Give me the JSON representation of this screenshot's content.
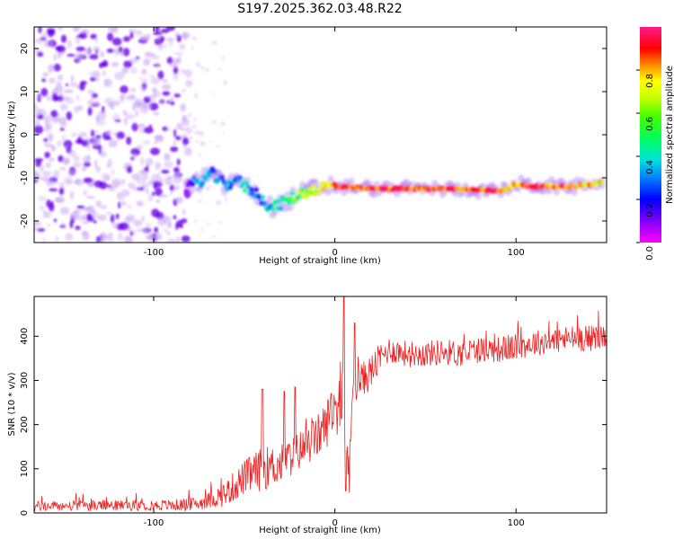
{
  "title": "S197.2025.362.03.48.R22",
  "colors": {
    "snr_line": "#ee2222",
    "spec_dark": "#6a00e8",
    "spec_light": "#c9a6f2"
  },
  "chart_data": [
    {
      "type": "heatmap",
      "xlabel": "Height of straight line (km)",
      "ylabel": "Frequency (Hz)",
      "xlim": [
        -166,
        150
      ],
      "ylim": [
        -25,
        25
      ],
      "xticks": [
        -100,
        0,
        100
      ],
      "yticks": [
        -20,
        -10,
        0,
        10,
        20
      ],
      "grid": false,
      "colorbar": {
        "label": "Normalized spectral amplitude",
        "range": [
          0,
          1
        ],
        "ticks": [
          0.0,
          0.2,
          0.4,
          0.6,
          0.8
        ],
        "tick_labels": [
          "0.0",
          "0.2",
          "0.4",
          "0.6",
          "0.8"
        ],
        "colormap": "rainbow (magenta-blue-cyan-green-yellow-red-pink)"
      },
      "noise_region_x": [
        -166,
        -80
      ],
      "ridge": {
        "description": "dominant frequency ridge vs height",
        "x": [
          -82,
          -75,
          -68,
          -60,
          -55,
          -50,
          -45,
          -40,
          -35,
          -30,
          -25,
          -20,
          -15,
          -10,
          -5,
          0,
          10,
          20,
          40,
          60,
          80,
          90,
          95,
          100,
          110,
          120,
          130,
          140,
          148
        ],
        "freq_hz": [
          -12,
          -11,
          -9,
          -12,
          -10,
          -12,
          -13,
          -15,
          -17,
          -16,
          -15,
          -14,
          -13,
          -12.5,
          -12,
          -12,
          -12.3,
          -12.5,
          -12.5,
          -12.5,
          -12.8,
          -13,
          -12.5,
          -11.5,
          -12,
          -12,
          -12,
          -11.5,
          -11
        ],
        "amplitude": [
          0.3,
          0.45,
          0.4,
          0.35,
          0.45,
          0.5,
          0.4,
          0.45,
          0.5,
          0.55,
          0.6,
          0.7,
          0.8,
          0.85,
          0.9,
          0.95,
          1.0,
          1.0,
          1.0,
          1.0,
          0.95,
          1.0,
          0.9,
          0.9,
          1.0,
          1.0,
          1.0,
          0.9,
          0.85
        ]
      }
    },
    {
      "type": "line",
      "xlabel": "Height of straight line (km)",
      "ylabel": "SNR (10 * v/v)",
      "xlim": [
        -166,
        150
      ],
      "ylim": [
        0,
        490
      ],
      "xticks": [
        -100,
        0,
        100
      ],
      "yticks": [
        0,
        100,
        200,
        300,
        400
      ],
      "grid": false,
      "series": [
        {
          "name": "SNR",
          "x": [
            -166,
            -140,
            -120,
            -100,
            -85,
            -75,
            -68,
            -60,
            -50,
            -40,
            -30,
            -20,
            -10,
            -5,
            0,
            5,
            8,
            10,
            15,
            20,
            25,
            30,
            40,
            50,
            60,
            70,
            80,
            90,
            100,
            110,
            120,
            130,
            140,
            150
          ],
          "mean": [
            15,
            16,
            17,
            17,
            18,
            22,
            30,
            45,
            80,
            100,
            110,
            140,
            170,
            200,
            240,
            220,
            80,
            300,
            300,
            320,
            350,
            370,
            360,
            360,
            365,
            360,
            370,
            370,
            375,
            385,
            390,
            395,
            395,
            400
          ],
          "spread": [
            12,
            12,
            12,
            12,
            14,
            15,
            20,
            30,
            40,
            50,
            45,
            45,
            50,
            55,
            60,
            60,
            60,
            50,
            40,
            40,
            35,
            30,
            30,
            30,
            30,
            30,
            30,
            30,
            30,
            30,
            30,
            30,
            30,
            30
          ],
          "peaks": [
            {
              "x": -40,
              "y": 280
            },
            {
              "x": -28,
              "y": 275
            },
            {
              "x": -22,
              "y": 285
            },
            {
              "x": -2,
              "y": 270
            },
            {
              "x": 5,
              "y": 490
            },
            {
              "x": 11,
              "y": 430
            },
            {
              "x": 6,
              "y": 50
            }
          ]
        }
      ]
    }
  ]
}
